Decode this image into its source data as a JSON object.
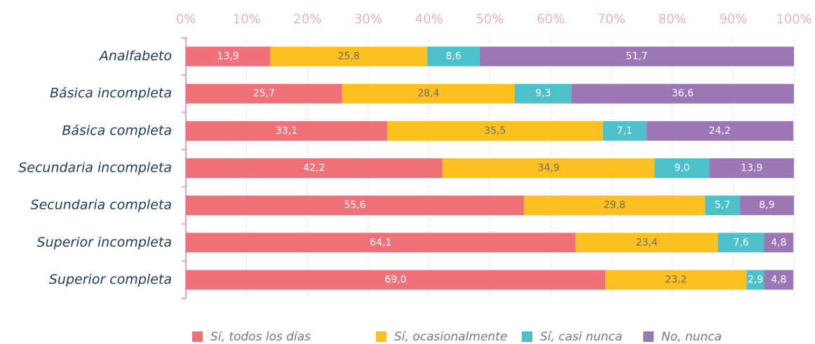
{
  "chart_data": {
    "type": "stacked-barh",
    "categories": [
      "Analfabeto",
      "Básica incompleta",
      "Básica completa",
      "Secundaria incompleta",
      "Secundaria completa",
      "Superior incompleta",
      "Superior completa"
    ],
    "series": [
      {
        "name": "Sí, todos los días",
        "color": "#f0717a",
        "values": [
          13.9,
          25.7,
          33.1,
          42.2,
          55.6,
          64.1,
          69.0
        ],
        "value_labels": [
          "13,9",
          "25,7",
          "33,1",
          "42,2",
          "55,6",
          "64,1",
          "69,0"
        ]
      },
      {
        "name": "Sí, ocasionalmente",
        "color": "#fdc021",
        "values": [
          25.8,
          28.4,
          35.5,
          34.9,
          29.8,
          23.4,
          23.2
        ],
        "value_labels": [
          "25,8",
          "28,4",
          "35,5",
          "34,9",
          "29,8",
          "23,4",
          "23,2"
        ]
      },
      {
        "name": "Sí, casi nunca",
        "color": "#4cc1ca",
        "values": [
          8.6,
          9.3,
          7.1,
          9.0,
          5.7,
          7.6,
          2.9
        ],
        "value_labels": [
          "8,6",
          "9,3",
          "7,1",
          "9,0",
          "5,7",
          "7,6",
          "2,9"
        ]
      },
      {
        "name": "No, nunca",
        "color": "#9c77b5",
        "values": [
          51.7,
          36.6,
          24.2,
          13.9,
          8.9,
          4.8,
          4.8
        ],
        "value_labels": [
          "51,7",
          "36,6",
          "24,2",
          "13,9",
          "8,9",
          "4,8",
          "4,8"
        ]
      }
    ],
    "xlim": [
      0,
      100
    ],
    "xticks": [
      {
        "value": 0,
        "label": "0%"
      },
      {
        "value": 10,
        "label": "10%"
      },
      {
        "value": 20,
        "label": "20%"
      },
      {
        "value": 30,
        "label": "30%"
      },
      {
        "value": 40,
        "label": "40%"
      },
      {
        "value": 50,
        "label": "50%"
      },
      {
        "value": 60,
        "label": "60%"
      },
      {
        "value": 70,
        "label": "70%"
      },
      {
        "value": 80,
        "label": "80%"
      },
      {
        "value": 90,
        "label": "90%"
      },
      {
        "value": 100,
        "label": "100%"
      }
    ],
    "grid": true,
    "legend": "bottom"
  }
}
